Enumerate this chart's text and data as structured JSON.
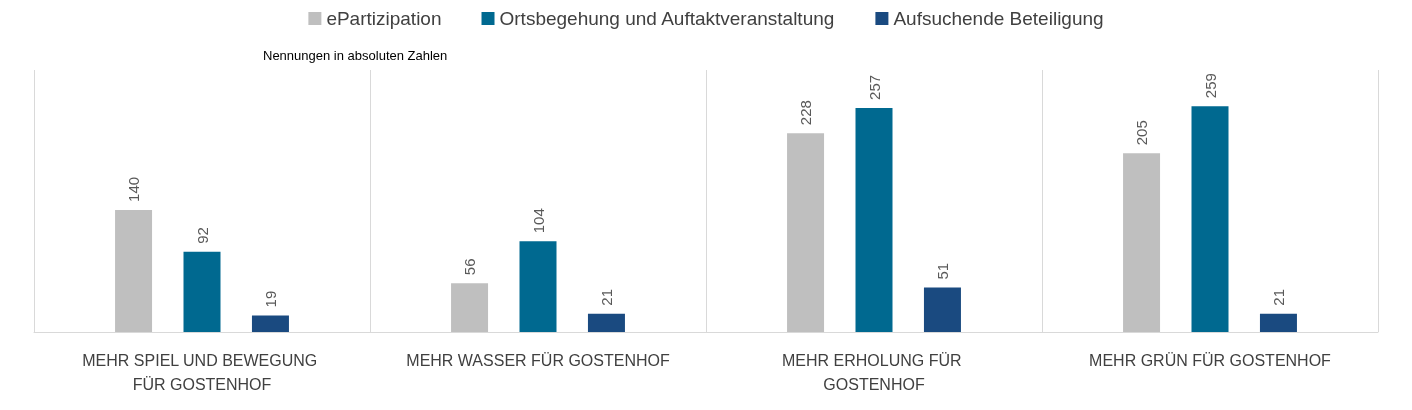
{
  "chart_data": {
    "type": "bar",
    "subtitle": "Nennungen in absoluten Zahlen",
    "categories": [
      "MEHR SPIEL UND BEWEGUNG FÜR GOSTENHOF",
      "MEHR WASSER FÜR GOSTENHOF",
      "MEHR ERHOLUNG FÜR GOSTENHOF",
      "MEHR GRÜN FÜR GOSTENHOF"
    ],
    "series": [
      {
        "name": "ePartizipation",
        "color": "#bfbfbf",
        "values": [
          140,
          56,
          228,
          205
        ]
      },
      {
        "name": "Ortsbegehung und Auftaktveranstaltung",
        "color": "#006990",
        "values": [
          92,
          104,
          257,
          259
        ]
      },
      {
        "name": "Aufsuchende Beteiligung",
        "color": "#1a4a80",
        "values": [
          19,
          21,
          51,
          21
        ]
      }
    ],
    "data_labels": true,
    "grid": "x",
    "legend": "top"
  }
}
